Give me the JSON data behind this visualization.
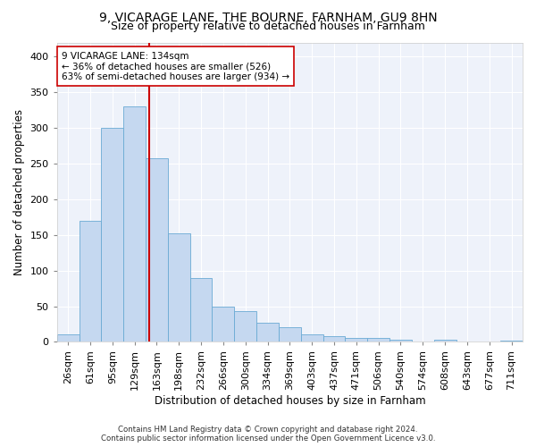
{
  "title1": "9, VICARAGE LANE, THE BOURNE, FARNHAM, GU9 8HN",
  "title2": "Size of property relative to detached houses in Farnham",
  "xlabel": "Distribution of detached houses by size in Farnham",
  "ylabel": "Number of detached properties",
  "footer1": "Contains HM Land Registry data © Crown copyright and database right 2024.",
  "footer2": "Contains public sector information licensed under the Open Government Licence v3.0.",
  "bar_labels": [
    "26sqm",
    "61sqm",
    "95sqm",
    "129sqm",
    "163sqm",
    "198sqm",
    "232sqm",
    "266sqm",
    "300sqm",
    "334sqm",
    "369sqm",
    "403sqm",
    "437sqm",
    "471sqm",
    "506sqm",
    "540sqm",
    "574sqm",
    "608sqm",
    "643sqm",
    "677sqm",
    "711sqm"
  ],
  "bar_values": [
    10,
    170,
    300,
    330,
    258,
    152,
    90,
    50,
    43,
    27,
    20,
    10,
    8,
    5,
    5,
    3,
    1,
    3,
    1,
    1,
    2
  ],
  "bar_color": "#c5d8f0",
  "bar_edge_color": "#6aaad4",
  "vline_x": 3.65,
  "vline_color": "#cc0000",
  "annotation_text": "9 VICARAGE LANE: 134sqm\n← 36% of detached houses are smaller (526)\n63% of semi-detached houses are larger (934) →",
  "annotation_box_color": "white",
  "annotation_box_edge": "#cc0000",
  "bg_color": "#ffffff",
  "plot_bg_color": "#eef2fa",
  "ylim": [
    0,
    420
  ],
  "yticks": [
    0,
    50,
    100,
    150,
    200,
    250,
    300,
    350,
    400
  ],
  "title1_fontsize": 10,
  "title2_fontsize": 9,
  "xlabel_fontsize": 8.5,
  "ylabel_fontsize": 8.5,
  "tick_fontsize": 8,
  "annot_fontsize": 7.5
}
